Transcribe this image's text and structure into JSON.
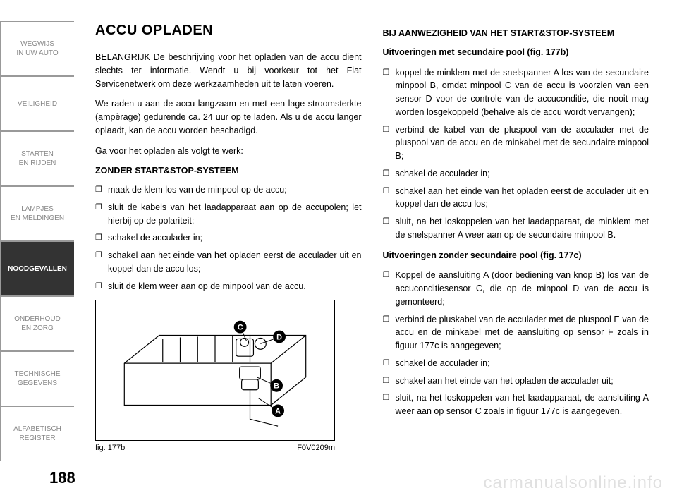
{
  "page_number": "188",
  "sidebar": {
    "tabs": [
      {
        "label": "WEGWIJS\nIN UW AUTO",
        "active": false
      },
      {
        "label": "VEILIGHEID",
        "active": false
      },
      {
        "label": "STARTEN\nEN RIJDEN",
        "active": false
      },
      {
        "label": "LAMPJES\nEN MELDINGEN",
        "active": false
      },
      {
        "label": "NOODGEVALLEN",
        "active": true
      },
      {
        "label": "ONDERHOUD\nEN ZORG",
        "active": false
      },
      {
        "label": "TECHNISCHE\nGEGEVENS",
        "active": false
      },
      {
        "label": "ALFABETISCH\nREGISTER",
        "active": false
      }
    ]
  },
  "left": {
    "title": "ACCU OPLADEN",
    "p1": "BELANGRIJK De beschrijving voor het opladen van de accu dient slechts ter informatie. Wendt u bij voorkeur tot het Fiat Servicenetwerk om deze werkzaamheden uit te laten voeren.",
    "p2": "We raden u aan de accu langzaam en met een lage stroomsterkte (ampèrage) gedurende ca. 24 uur op te laden. Als u de accu langer oplaadt, kan de accu worden beschadigd.",
    "p3": "Ga voor het opladen als volgt te werk:",
    "sub1": "ZONDER START&STOP-SYSTEEM",
    "items1": [
      "maak de klem los van de minpool op de accu;",
      "sluit de kabels van het laadapparaat aan op de accupolen; let hierbij op de polariteit;",
      "schakel de acculader in;",
      "schakel aan het einde van het opladen eerst de acculader uit en koppel dan de accu los;",
      "sluit de klem weer aan op de minpool van de accu."
    ],
    "fig_label": "fig. 177b",
    "fig_code": "F0V0209m",
    "callouts": [
      "A",
      "B",
      "C",
      "D"
    ]
  },
  "right": {
    "sub1": "BIJ AANWEZIGHEID VAN HET START&STOP-SYSTEEM",
    "sub2": "Uitvoeringen met secundaire pool (fig. 177b)",
    "items1": [
      "koppel de minklem met de snelspanner A los van de secundaire minpool B, omdat minpool C van de accu is voorzien van een sensor D voor de controle van de accuconditie, die nooit mag worden losgekoppeld (behalve als de accu wordt vervangen);",
      "verbind de kabel van de pluspool van de acculader met de pluspool van de accu en de minkabel met de secundaire minpool B;",
      "schakel de acculader in;",
      "schakel aan het einde van het opladen eerst de acculader uit en koppel dan de accu los;",
      "sluit, na het loskoppelen van het laadapparaat, de minklem met de snelspanner A weer aan op de secundaire minpool B."
    ],
    "sub3": "Uitvoeringen zonder secundaire pool (fig. 177c)",
    "items2": [
      "Koppel de aansluiting A (door bediening van knop B) los van de accuconditiesensor C, die op de minpool D van de accu is gemonteerd;",
      "verbind de pluskabel van de acculader met de pluspool E van de accu en de minkabel met de aansluiting op sensor F zoals in figuur 177c is aangegeven;",
      "schakel de acculader in;",
      "schakel aan het einde van het opladen de acculader uit;",
      "sluit, na het loskoppelen van het laadapparaat, de aansluiting A weer aan op sensor C zoals in figuur 177c is aangegeven."
    ]
  },
  "watermark": "carmanualsonline.info",
  "styles": {
    "page_bg": "#ffffff",
    "tab_border": "#999999",
    "tab_text": "#888888",
    "tab_active_bg": "#333333",
    "tab_active_text": "#ffffff",
    "body_text": "#000000",
    "watermark_color": "rgba(0,0,0,0.12)",
    "title_fontsize": 20,
    "body_fontsize": 12.5,
    "tab_fontsize": 10,
    "page_num_fontsize": 22
  }
}
